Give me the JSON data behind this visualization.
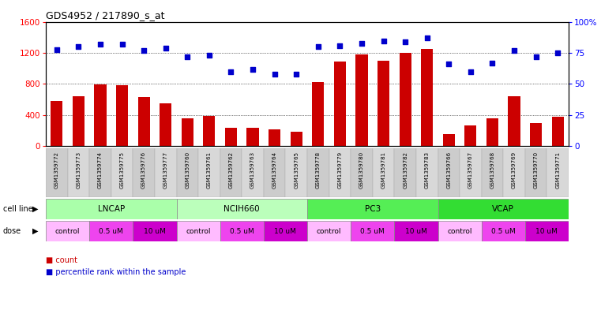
{
  "title": "GDS4952 / 217890_s_at",
  "samples": [
    "GSM1359772",
    "GSM1359773",
    "GSM1359774",
    "GSM1359775",
    "GSM1359776",
    "GSM1359777",
    "GSM1359760",
    "GSM1359761",
    "GSM1359762",
    "GSM1359763",
    "GSM1359764",
    "GSM1359765",
    "GSM1359778",
    "GSM1359779",
    "GSM1359780",
    "GSM1359781",
    "GSM1359782",
    "GSM1359783",
    "GSM1359766",
    "GSM1359767",
    "GSM1359768",
    "GSM1359769",
    "GSM1359770",
    "GSM1359771"
  ],
  "counts": [
    580,
    640,
    790,
    780,
    630,
    550,
    360,
    390,
    230,
    230,
    210,
    185,
    830,
    1090,
    1180,
    1100,
    1200,
    1250,
    150,
    260,
    360,
    640,
    300,
    380
  ],
  "percentiles": [
    78,
    80,
    82,
    82,
    77,
    79,
    72,
    73,
    60,
    62,
    58,
    58,
    80,
    81,
    83,
    85,
    84,
    87,
    66,
    60,
    67,
    77,
    72,
    75
  ],
  "cell_lines": [
    {
      "name": "LNCAP",
      "start": 0,
      "end": 6,
      "color": "#AAFFAA"
    },
    {
      "name": "NCIH660",
      "start": 6,
      "end": 12,
      "color": "#BBFFBB"
    },
    {
      "name": "PC3",
      "start": 12,
      "end": 18,
      "color": "#55EE55"
    },
    {
      "name": "VCAP",
      "start": 18,
      "end": 24,
      "color": "#33DD33"
    }
  ],
  "dose_blocks": [
    {
      "label": "control",
      "start": 0,
      "end": 2,
      "color": "#FFBBFF"
    },
    {
      "label": "0.5 uM",
      "start": 2,
      "end": 4,
      "color": "#EE44EE"
    },
    {
      "label": "10 uM",
      "start": 4,
      "end": 6,
      "color": "#CC00CC"
    },
    {
      "label": "control",
      "start": 6,
      "end": 8,
      "color": "#FFBBFF"
    },
    {
      "label": "0.5 uM",
      "start": 8,
      "end": 10,
      "color": "#EE44EE"
    },
    {
      "label": "10 uM",
      "start": 10,
      "end": 12,
      "color": "#CC00CC"
    },
    {
      "label": "control",
      "start": 12,
      "end": 14,
      "color": "#FFBBFF"
    },
    {
      "label": "0.5 uM",
      "start": 14,
      "end": 16,
      "color": "#EE44EE"
    },
    {
      "label": "10 uM",
      "start": 16,
      "end": 18,
      "color": "#CC00CC"
    },
    {
      "label": "control",
      "start": 18,
      "end": 20,
      "color": "#FFBBFF"
    },
    {
      "label": "0.5 uM",
      "start": 20,
      "end": 22,
      "color": "#EE44EE"
    },
    {
      "label": "10 uM",
      "start": 22,
      "end": 24,
      "color": "#CC00CC"
    }
  ],
  "ylim_left": [
    0,
    1600
  ],
  "ylim_right": [
    0,
    100
  ],
  "yticks_left": [
    0,
    400,
    800,
    1200,
    1600
  ],
  "yticks_right": [
    0,
    25,
    50,
    75,
    100
  ],
  "bar_color": "#CC0000",
  "dot_color": "#0000CC",
  "bg_color": "#FFFFFF",
  "plot_bg": "#FFFFFF",
  "label_bg": "#C8C8C8",
  "cell_border": "#888888",
  "dose_border": "#888888"
}
